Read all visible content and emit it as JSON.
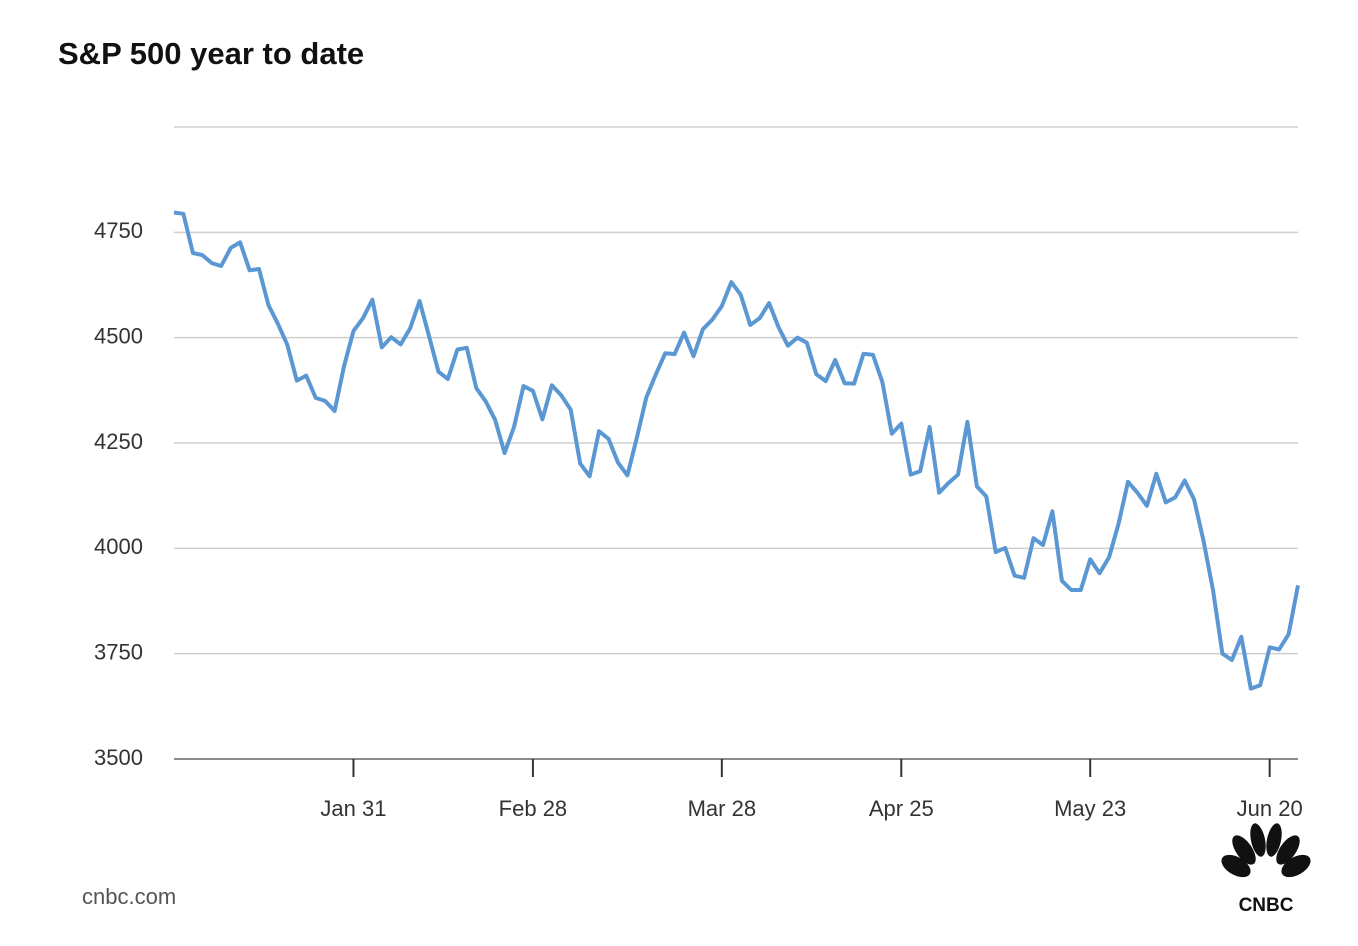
{
  "chart_data": {
    "type": "line",
    "title": "S&P 500 year to date",
    "source": "cnbc.com",
    "logo_text": "CNBC",
    "categories": [
      null,
      null,
      null,
      null,
      null,
      null,
      null,
      null,
      null,
      null,
      null,
      null,
      null,
      null,
      null,
      null,
      null,
      null,
      null,
      "Jan 31",
      null,
      null,
      null,
      null,
      null,
      null,
      null,
      null,
      null,
      null,
      null,
      null,
      null,
      null,
      null,
      null,
      null,
      null,
      "Feb 28",
      null,
      null,
      null,
      null,
      null,
      null,
      null,
      null,
      null,
      null,
      null,
      null,
      null,
      null,
      null,
      null,
      null,
      null,
      null,
      "Mar 28",
      null,
      null,
      null,
      null,
      null,
      null,
      null,
      null,
      null,
      null,
      null,
      null,
      null,
      null,
      null,
      null,
      null,
      null,
      "Apr 25",
      null,
      null,
      null,
      null,
      null,
      null,
      null,
      null,
      null,
      null,
      null,
      null,
      null,
      null,
      null,
      null,
      null,
      null,
      null,
      "May 23",
      null,
      null,
      null,
      null,
      null,
      null,
      null,
      null,
      null,
      null,
      null,
      null,
      null,
      null,
      null,
      null,
      null,
      null,
      "Jun 20",
      null,
      null,
      null
    ],
    "series": [
      {
        "color": "#5b97d3",
        "values": [
          4797,
          4794,
          4701,
          4696,
          4677,
          4670,
          4713,
          4726,
          4660,
          4663,
          4577,
          4533,
          4483,
          4398,
          4410,
          4357,
          4350,
          4326,
          4432,
          4516,
          4546,
          4590,
          4477,
          4501,
          4484,
          4522,
          4587,
          4504,
          4419,
          4402,
          4472,
          4476,
          4380,
          4349,
          4305,
          4226,
          4288,
          4385,
          4374,
          4306,
          4387,
          4363,
          4329,
          4201,
          4171,
          4278,
          4260,
          4204,
          4173,
          4262,
          4358,
          4412,
          4463,
          4461,
          4512,
          4456,
          4520,
          4543,
          4575,
          4632,
          4602,
          4530,
          4546,
          4582,
          4525,
          4481,
          4500,
          4488,
          4413,
          4397,
          4447,
          4392,
          4391,
          4462,
          4459,
          4394,
          4272,
          4296,
          4175,
          4183,
          4288,
          4132,
          4155,
          4175,
          4300,
          4147,
          4123,
          3991,
          4001,
          3935,
          3930,
          4024,
          4008,
          4088,
          3923,
          3901,
          3901,
          3974,
          3941,
          3979,
          4058,
          4158,
          4132,
          4101,
          4177,
          4109,
          4121,
          4161,
          4116,
          4018,
          3901,
          3750,
          3735,
          3790,
          3667,
          3675,
          3765,
          3760,
          3796,
          3912
        ]
      }
    ],
    "ylim": [
      3500,
      5000
    ],
    "yticks": [
      3500,
      3750,
      4000,
      4250,
      4500,
      4750
    ],
    "grid": true
  }
}
